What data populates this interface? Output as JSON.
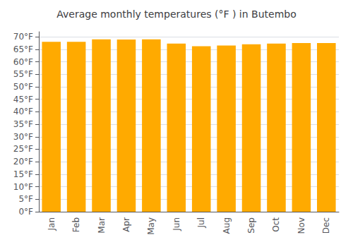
{
  "chart_data": {
    "type": "bar",
    "title": "Average monthly temperatures (°F ) in Butembo",
    "categories": [
      "Jan",
      "Feb",
      "Mar",
      "Apr",
      "May",
      "Jun",
      "Jul",
      "Aug",
      "Sep",
      "Oct",
      "Nov",
      "Dec"
    ],
    "values": [
      68.0,
      68.0,
      69.0,
      68.9,
      69.0,
      67.3,
      66.2,
      66.5,
      67.0,
      67.3,
      67.5,
      67.5
    ],
    "color": "#FFAA00",
    "ylim": [
      0,
      72
    ],
    "yticks": [
      {
        "value": 0,
        "label": "0°F"
      },
      {
        "value": 5,
        "label": "5°F"
      },
      {
        "value": 10,
        "label": "10°F"
      },
      {
        "value": 15,
        "label": "15°F"
      },
      {
        "value": 20,
        "label": "20°F"
      },
      {
        "value": 25,
        "label": "25°F"
      },
      {
        "value": 30,
        "label": "30°F"
      },
      {
        "value": 35,
        "label": "35°F"
      },
      {
        "value": 40,
        "label": "40°F"
      },
      {
        "value": 45,
        "label": "45°F"
      },
      {
        "value": 50,
        "label": "50°F"
      },
      {
        "value": 55,
        "label": "55°F"
      },
      {
        "value": 60,
        "label": "60°F"
      },
      {
        "value": 65,
        "label": "65°F"
      },
      {
        "value": 70,
        "label": "70°F"
      }
    ],
    "grid": true
  }
}
